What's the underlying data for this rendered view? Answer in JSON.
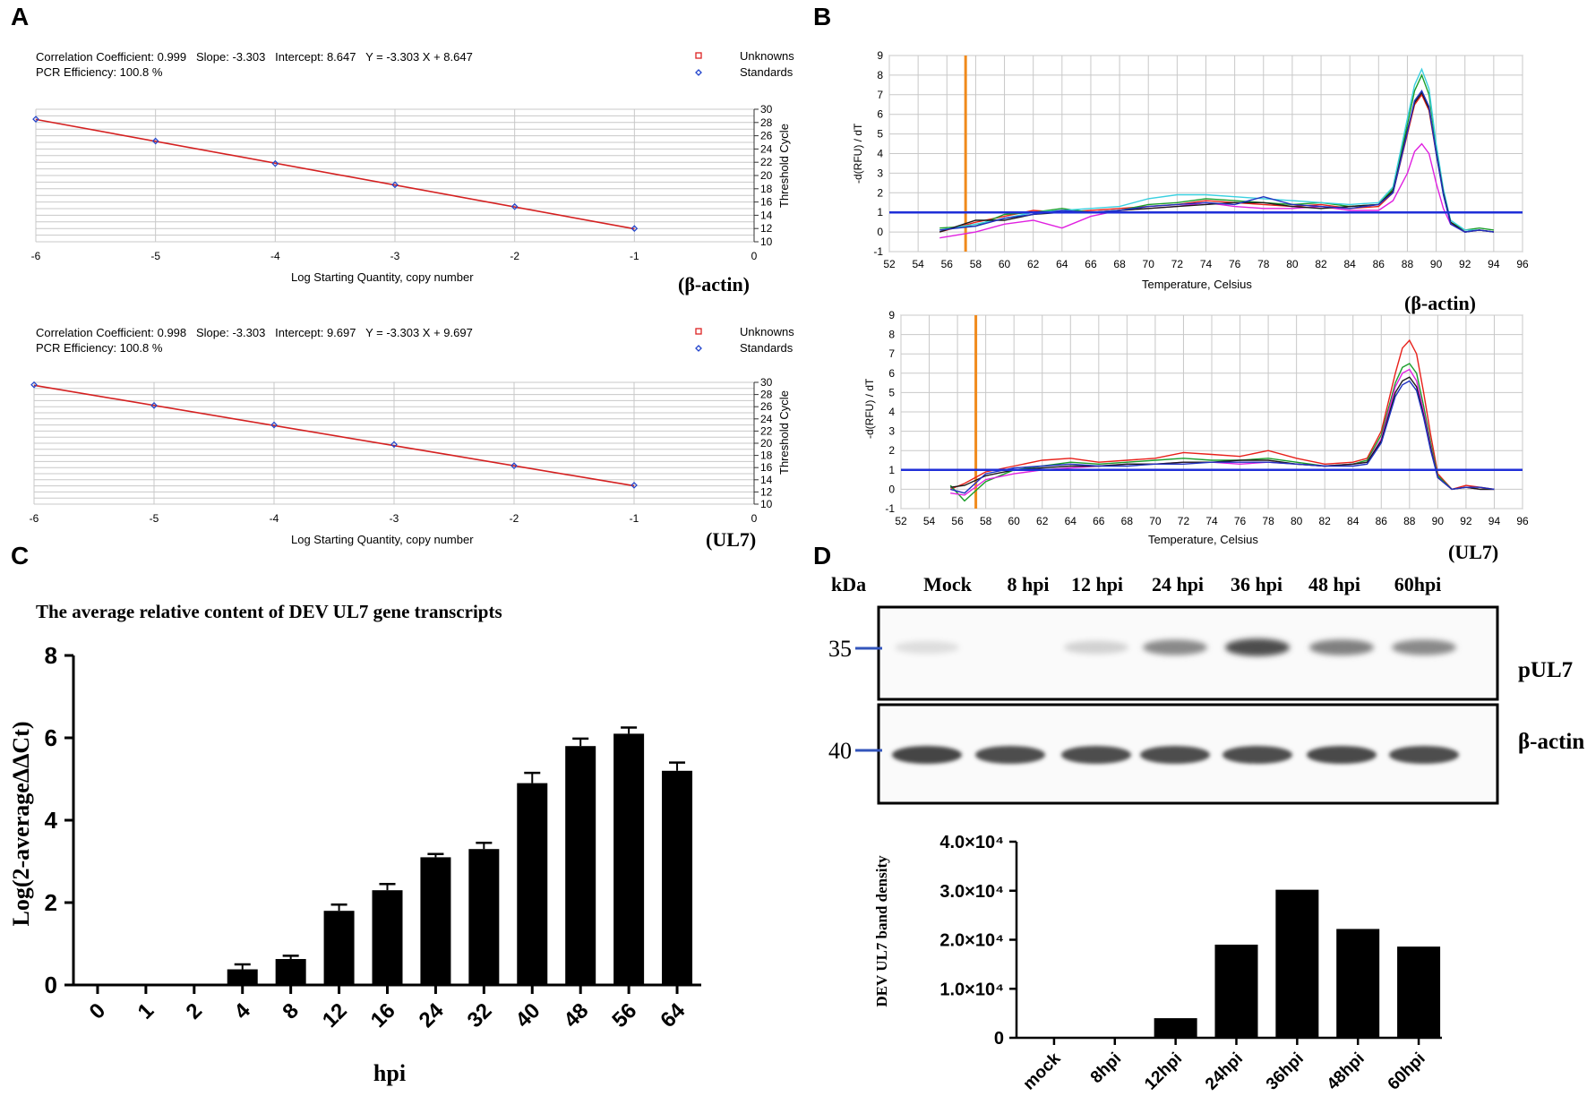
{
  "panel_labels": {
    "a": "A",
    "b": "B",
    "c": "C",
    "d": "D"
  },
  "chart_data": [
    {
      "id": "A1",
      "type": "scatter",
      "gene_label": "(β-actin)",
      "stats_line1": "Correlation Coefficient: 0.999   Slope: -3.303   Intercept: 8.647   Y = -3.303 X + 8.647",
      "stats_line2": "PCR Efficiency: 100.8 %",
      "legend": [
        {
          "label": "Unknowns",
          "color": "#dd2222",
          "marker": "square"
        },
        {
          "label": "Standards",
          "color": "#2244cc",
          "marker": "diamond"
        }
      ],
      "xlabel": "Log Starting Quantity, copy number",
      "ylabel": "Threshold Cycle",
      "xlim": [
        -6,
        0
      ],
      "ylim": [
        10,
        30
      ],
      "xticks": [
        "-6",
        "-5",
        "-4",
        "-3",
        "-2",
        "-1",
        "0"
      ],
      "yticks": [
        "10",
        "12",
        "14",
        "16",
        "18",
        "20",
        "22",
        "24",
        "26",
        "28",
        "30"
      ],
      "slope": -3.303,
      "intercept": 8.647,
      "points": [
        {
          "x": -6,
          "y": 28.5
        },
        {
          "x": -5,
          "y": 25.2
        },
        {
          "x": -4,
          "y": 21.8
        },
        {
          "x": -3,
          "y": 18.6
        },
        {
          "x": -2,
          "y": 15.3
        },
        {
          "x": -1,
          "y": 12.0
        }
      ]
    },
    {
      "id": "A2",
      "type": "scatter",
      "gene_label": "(UL7)",
      "stats_line1": "Correlation Coefficient: 0.998   Slope: -3.303   Intercept: 9.697   Y = -3.303 X + 9.697",
      "stats_line2": "PCR Efficiency: 100.8 %",
      "legend": [
        {
          "label": "Unknowns",
          "color": "#dd2222",
          "marker": "square"
        },
        {
          "label": "Standards",
          "color": "#2244cc",
          "marker": "diamond"
        }
      ],
      "xlabel": "Log Starting Quantity, copy number",
      "ylabel": "Threshold Cycle",
      "xlim": [
        -6,
        0
      ],
      "ylim": [
        10,
        30
      ],
      "xticks": [
        "-6",
        "-5",
        "-4",
        "-3",
        "-2",
        "-1",
        "0"
      ],
      "yticks": [
        "10",
        "12",
        "14",
        "16",
        "18",
        "20",
        "22",
        "24",
        "26",
        "28",
        "30"
      ],
      "slope": -3.303,
      "intercept": 9.697,
      "points": [
        {
          "x": -6,
          "y": 29.6
        },
        {
          "x": -5,
          "y": 26.2
        },
        {
          "x": -4,
          "y": 23.0
        },
        {
          "x": -3,
          "y": 19.8
        },
        {
          "x": -2,
          "y": 16.3
        },
        {
          "x": -1,
          "y": 13.1
        }
      ]
    },
    {
      "id": "B1",
      "type": "line",
      "gene_label": "(β-actin)",
      "xlabel": "Temperature, Celsius",
      "ylabel": "-d(RFU) / dT",
      "xlim": [
        52,
        96
      ],
      "ylim": [
        -1,
        9
      ],
      "xticks": [
        "52",
        "54",
        "56",
        "58",
        "60",
        "62",
        "64",
        "66",
        "68",
        "70",
        "72",
        "74",
        "76",
        "78",
        "80",
        "82",
        "84",
        "86",
        "88",
        "90",
        "92",
        "94",
        "96"
      ],
      "yticks": [
        "-1",
        "0",
        "1",
        "2",
        "3",
        "4",
        "5",
        "6",
        "7",
        "8",
        "9"
      ],
      "threshold": 1.0,
      "marker_x": 57.3,
      "x": [
        55.5,
        58,
        60,
        62,
        64,
        66,
        68,
        70,
        72,
        74,
        76,
        78,
        80,
        82,
        84,
        86,
        87,
        88,
        88.5,
        89,
        89.5,
        90,
        90.5,
        91,
        92,
        93,
        94
      ],
      "series": [
        {
          "color": "#e8201a",
          "values": [
            0,
            0.5,
            0.8,
            1.1,
            1.0,
            1.1,
            1.2,
            1.3,
            1.4,
            1.6,
            1.5,
            1.4,
            1.3,
            1.4,
            1.2,
            1.3,
            2.0,
            5.0,
            6.5,
            7.0,
            6.2,
            4.0,
            2.0,
            0.5,
            0.0,
            0.1,
            0.0
          ]
        },
        {
          "color": "#1a9e2a",
          "values": [
            0.2,
            0.3,
            0.9,
            1.0,
            1.2,
            1.0,
            1.1,
            1.4,
            1.5,
            1.7,
            1.6,
            1.5,
            1.4,
            1.5,
            1.3,
            1.4,
            2.2,
            5.5,
            7.2,
            8.0,
            7.0,
            4.3,
            2.1,
            0.5,
            0.1,
            0.2,
            0.1
          ]
        },
        {
          "color": "#3ad0e0",
          "values": [
            0.1,
            0.4,
            0.7,
            1.0,
            1.1,
            1.2,
            1.3,
            1.7,
            1.9,
            1.9,
            1.8,
            1.7,
            1.6,
            1.5,
            1.4,
            1.5,
            2.3,
            5.8,
            7.5,
            8.3,
            7.3,
            4.5,
            2.2,
            0.6,
            0.1,
            0.1,
            0.0
          ]
        },
        {
          "color": "#e020e0",
          "values": [
            -0.3,
            0.0,
            0.4,
            0.6,
            0.2,
            0.8,
            1.1,
            1.2,
            1.3,
            1.5,
            1.3,
            1.2,
            1.2,
            1.3,
            1.1,
            1.1,
            1.6,
            3.0,
            4.1,
            4.5,
            4.0,
            2.5,
            1.2,
            0.4,
            0.0,
            0.1,
            0.0
          ]
        },
        {
          "color": "#1a1a1a",
          "values": [
            0,
            0.6,
            0.6,
            0.9,
            1.0,
            1.0,
            1.1,
            1.2,
            1.3,
            1.4,
            1.5,
            1.5,
            1.3,
            1.2,
            1.3,
            1.4,
            2.1,
            5.2,
            6.6,
            7.1,
            6.3,
            4.1,
            2.0,
            0.5,
            0.0,
            0.1,
            0.0
          ]
        },
        {
          "color": "#2030c0",
          "values": [
            0.1,
            0.3,
            0.7,
            0.9,
            1.1,
            1.0,
            1.1,
            1.3,
            1.4,
            1.5,
            1.4,
            1.8,
            1.4,
            1.3,
            1.2,
            1.4,
            2.0,
            5.1,
            6.7,
            7.2,
            6.4,
            4.0,
            1.9,
            0.4,
            0.0,
            0.1,
            0.0
          ]
        }
      ]
    },
    {
      "id": "B2",
      "type": "line",
      "gene_label": "(UL7)",
      "xlabel": "Temperature, Celsius",
      "ylabel": "-d(RFU) / dT",
      "xlim": [
        52,
        96
      ],
      "ylim": [
        -1,
        9
      ],
      "xticks": [
        "52",
        "54",
        "56",
        "58",
        "60",
        "62",
        "64",
        "66",
        "68",
        "70",
        "72",
        "74",
        "76",
        "78",
        "80",
        "82",
        "84",
        "86",
        "88",
        "90",
        "92",
        "94",
        "96"
      ],
      "yticks": [
        "-1",
        "0",
        "1",
        "2",
        "3",
        "4",
        "5",
        "6",
        "7",
        "8",
        "9"
      ],
      "threshold": 1.0,
      "marker_x": 57.3,
      "x": [
        55.5,
        56.5,
        58,
        60,
        62,
        64,
        66,
        68,
        70,
        72,
        74,
        76,
        78,
        80,
        82,
        84,
        85,
        86,
        87,
        87.5,
        88,
        88.5,
        89,
        89.5,
        90,
        91,
        92,
        93,
        94
      ],
      "series": [
        {
          "color": "#e8201a",
          "values": [
            0,
            0.3,
            0.9,
            1.2,
            1.5,
            1.6,
            1.4,
            1.5,
            1.6,
            1.9,
            1.8,
            1.7,
            2.0,
            1.6,
            1.3,
            1.4,
            1.6,
            3.0,
            6.0,
            7.3,
            7.7,
            7.0,
            5.0,
            2.8,
            0.8,
            0.0,
            0.2,
            0.1,
            0.0
          ]
        },
        {
          "color": "#1a9e2a",
          "values": [
            0.2,
            -0.6,
            0.4,
            1.0,
            1.2,
            1.4,
            1.3,
            1.4,
            1.5,
            1.6,
            1.5,
            1.5,
            1.6,
            1.4,
            1.2,
            1.3,
            1.5,
            2.8,
            5.5,
            6.3,
            6.5,
            6.0,
            4.3,
            2.4,
            0.7,
            0.0,
            0.1,
            0.0,
            0.0
          ]
        },
        {
          "color": "#e020e0",
          "values": [
            -0.2,
            -0.3,
            0.5,
            0.8,
            1.0,
            1.1,
            1.2,
            1.3,
            1.3,
            1.4,
            1.4,
            1.3,
            1.4,
            1.3,
            1.2,
            1.3,
            1.4,
            2.6,
            5.3,
            6.0,
            6.2,
            5.6,
            4.0,
            2.2,
            0.6,
            0.0,
            0.1,
            0.0,
            0.0
          ]
        },
        {
          "color": "#1a1a1a",
          "values": [
            0.1,
            0.2,
            0.7,
            1.0,
            1.1,
            1.2,
            1.2,
            1.3,
            1.3,
            1.4,
            1.4,
            1.5,
            1.5,
            1.3,
            1.2,
            1.3,
            1.4,
            2.5,
            5.0,
            5.6,
            5.8,
            5.3,
            3.8,
            2.1,
            0.6,
            0.0,
            0.1,
            0.0,
            0.0
          ]
        },
        {
          "color": "#2030c0",
          "values": [
            0,
            -0.2,
            0.8,
            1.1,
            1.2,
            1.3,
            1.2,
            1.2,
            1.3,
            1.3,
            1.4,
            1.4,
            1.4,
            1.3,
            1.2,
            1.2,
            1.3,
            2.4,
            4.8,
            5.4,
            5.6,
            5.1,
            3.7,
            2.0,
            0.6,
            0.0,
            0.1,
            0.1,
            0.0
          ]
        }
      ]
    },
    {
      "id": "C",
      "type": "bar",
      "title": "The average relative content of DEV UL7 gene transcripts",
      "xlabel": "hpi",
      "ylabel": "Log(2-averageΔΔCt)",
      "ylim": [
        0,
        8
      ],
      "yticks": [
        "0",
        "2",
        "4",
        "6",
        "8"
      ],
      "categories": [
        "0",
        "1",
        "2",
        "4",
        "8",
        "12",
        "16",
        "24",
        "32",
        "40",
        "48",
        "56",
        "64"
      ],
      "values": [
        0,
        0,
        0,
        0.38,
        0.63,
        1.8,
        2.3,
        3.1,
        3.3,
        4.9,
        5.8,
        6.1,
        5.2
      ],
      "errors": [
        0,
        0,
        0,
        0.12,
        0.08,
        0.15,
        0.15,
        0.08,
        0.15,
        0.25,
        0.18,
        0.15,
        0.2
      ]
    },
    {
      "id": "D_quant",
      "type": "bar",
      "ylabel": "DEV UL7 band density",
      "ylim": [
        0,
        40000
      ],
      "yticks": [
        "0",
        "1.0×10⁴",
        "2.0×10⁴",
        "3.0×10⁴",
        "4.0×10⁴"
      ],
      "categories": [
        "mock",
        "8hpi",
        "12hpi",
        "24hpi",
        "36hpi",
        "48hpi",
        "60hpi"
      ],
      "values": [
        0,
        0,
        4000,
        19000,
        30200,
        22200,
        18600
      ]
    }
  ],
  "western_blot": {
    "kda_label": "kDa",
    "lanes": [
      "Mock",
      "8 hpi",
      "12 hpi",
      "24 hpi",
      "36 hpi",
      "48 hpi",
      "60hpi"
    ],
    "rows": [
      {
        "marker": "35",
        "protein": "pUL7",
        "intensities": [
          0.05,
          0.0,
          0.12,
          0.55,
          0.9,
          0.6,
          0.55
        ]
      },
      {
        "marker": "40",
        "protein": "β-actin",
        "intensities": [
          0.95,
          0.9,
          0.9,
          0.9,
          0.9,
          0.92,
          0.9
        ]
      }
    ]
  }
}
